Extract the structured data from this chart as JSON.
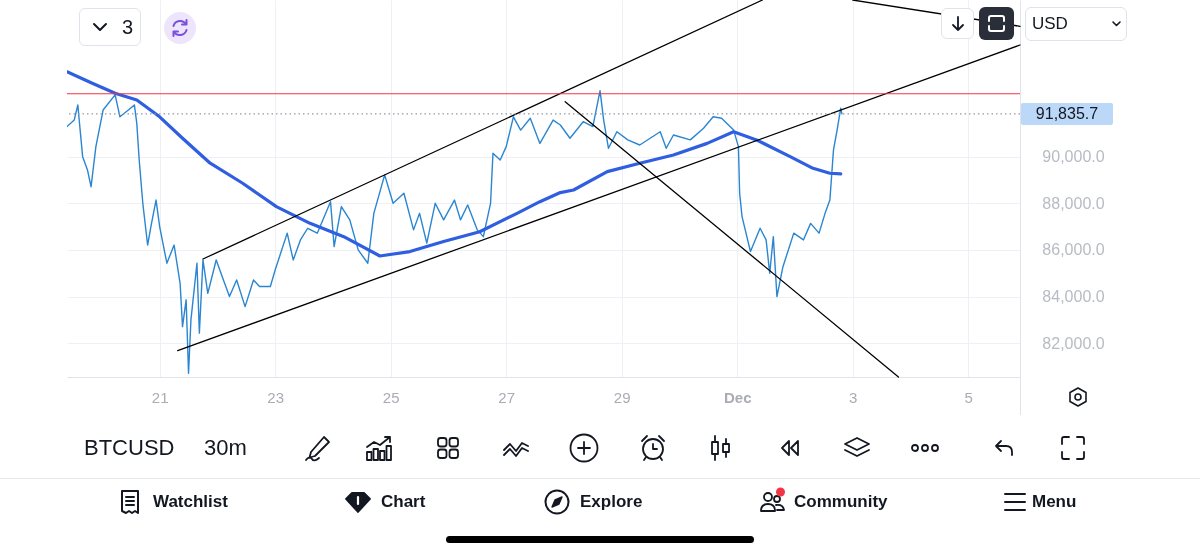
{
  "chart_data": {
    "type": "line",
    "annotations": [
      "3",
      "USD",
      "BTCUSD",
      "30m",
      "Watchlist",
      "Chart",
      "Explore",
      "Community",
      "Menu"
    ],
    "xlim": [
      "--11-19T09:30",
      "--12-05T21:30"
    ],
    "xticks": [
      {
        "value": "--11-21",
        "label": "21"
      },
      {
        "value": "--11-23",
        "label": "23"
      },
      {
        "value": "--11-25",
        "label": "25"
      },
      {
        "value": "--11-27",
        "label": "27"
      },
      {
        "value": "--11-29",
        "label": "29"
      },
      {
        "value": "--12-01",
        "label": "Dec"
      },
      {
        "value": "--12-03",
        "label": "3"
      },
      {
        "value": "--12-05",
        "label": "5"
      }
    ],
    "ylim": [
      80550,
      96720
    ],
    "yticks": [
      {
        "value": 82000,
        "label": "82,000.0"
      },
      {
        "value": 84000,
        "label": "84,000.0"
      },
      {
        "value": 86000,
        "label": "86,000.0"
      },
      {
        "value": 88000,
        "label": "88,000.0"
      },
      {
        "value": 90000,
        "label": "90,000.0"
      }
    ],
    "grid": true,
    "series": [
      {
        "color": "#2a86d1",
        "x": [
          "--11-19T09:30",
          "--11-19T12:30",
          "--11-19T14:00",
          "--11-19T14:30",
          "--11-19T16:00",
          "--11-19T18:00",
          "--11-19T19:30",
          "--11-19T21:30",
          "--11-20T00:30",
          "--11-20T05:30",
          "--11-20T07:30",
          "--11-20T11:00",
          "--11-20T13:30",
          "--11-20T14:30",
          "--11-20T15:30",
          "--11-20T17:00",
          "--11-20T19:00",
          "--11-20T20:30",
          "--11-20T22:30",
          "--11-21T00:00",
          "--11-21T03:00",
          "--11-21T06:00",
          "--11-21T08:30",
          "--11-21T09:30",
          "--11-21T11:00",
          "--11-21T12:00",
          "--11-21T13:00",
          "--11-21T15:30",
          "--11-21T16:30",
          "--11-21T18:00",
          "--11-21T20:00",
          "--11-21T23:30",
          "--11-22T02:30",
          "--11-22T05:00",
          "--11-22T08:00",
          "--11-22T11:30",
          "--11-22T15:00",
          "--11-22T17:30",
          "--11-22T22:00",
          "--11-23T00:00",
          "--11-23T05:00",
          "--11-23T07:30",
          "--11-23T10:30",
          "--11-23T13:30",
          "--11-23T17:30",
          "--11-23T23:00",
          "--11-24T00:30",
          "--11-24T03:30",
          "--11-24T07:00",
          "--11-24T10:30",
          "--11-24T14:30",
          "--11-24T17:00",
          "--11-24T21:30",
          "--11-25T01:00",
          "--11-25T05:30",
          "--11-25T09:30",
          "--11-25T12:00",
          "--11-25T15:00",
          "--11-25T18:30",
          "--11-25T22:00",
          "--11-26T02:30",
          "--11-26T05:00",
          "--11-26T08:00",
          "--11-26T12:00",
          "--11-26T14:30",
          "--11-26T17:30",
          "--11-26T18:30",
          "--11-26T21:30",
          "--11-27T00:00",
          "--11-27T03:00",
          "--11-27T06:00",
          "--11-27T10:00",
          "--11-27T14:00",
          "--11-27T19:30",
          "--11-27T22:30",
          "--11-28T02:30",
          "--11-28T08:00",
          "--11-28T12:00",
          "--11-28T15:00",
          "--11-28T16:30",
          "--11-28T18:30",
          "--11-28T22:00",
          "--11-29T02:30",
          "--11-29T07:30",
          "--11-29T16:00",
          "--11-29T18:30",
          "--11-29T21:30",
          "--11-30T04:30",
          "--11-30T10:00",
          "--11-30T14:00",
          "--11-30T17:30",
          "--11-30T22:30",
          "--12-01T00:30",
          "--12-01T01:00",
          "--12-01T02:00",
          "--12-01T04:00",
          "--12-01T05:30",
          "--12-01T09:30",
          "--12-01T12:00",
          "--12-01T13:30",
          "--12-01T15:00",
          "--12-01T16:30",
          "--12-01T19:00",
          "--12-01T23:30",
          "--12-02T03:30",
          "--12-02T06:30",
          "--12-02T10:00",
          "--12-02T12:30",
          "--12-02T14:30",
          "--12-02T16:00",
          "--12-02T17:30",
          "--12-02T19:00",
          "--12-02T19:30"
        ],
        "values": [
          91290,
          91570,
          92220,
          91650,
          90000,
          89430,
          88710,
          90430,
          92000,
          92650,
          91710,
          92000,
          92220,
          91430,
          89860,
          88000,
          86210,
          87070,
          88140,
          87000,
          85430,
          86210,
          84570,
          82710,
          83860,
          80710,
          83000,
          85430,
          82430,
          85570,
          84140,
          85570,
          84710,
          84000,
          84710,
          83570,
          84710,
          84430,
          84430,
          85140,
          86720,
          85570,
          86430,
          86930,
          86720,
          88070,
          86140,
          87860,
          87290,
          86000,
          85430,
          87570,
          89220,
          88000,
          88430,
          86860,
          87570,
          86290,
          88000,
          87290,
          88140,
          87290,
          87930,
          86860,
          86570,
          88000,
          90150,
          89860,
          90430,
          91710,
          91140,
          91650,
          90570,
          91570,
          91360,
          90790,
          91500,
          91290,
          92830,
          91570,
          90360,
          91070,
          90720,
          90500,
          91070,
          90360,
          90930,
          90720,
          91220,
          91710,
          91650,
          91140,
          90430,
          88430,
          87430,
          86570,
          85930,
          86930,
          86430,
          85000,
          86570,
          84000,
          85280,
          86720,
          86430,
          87140,
          86720,
          87570,
          88140,
          90290,
          91140,
          92080,
          91840
        ]
      },
      {
        "color": "#2f5fe0",
        "x": [
          "--11-19T09:30",
          "--11-19T20:00",
          "--11-20T05:30",
          "--11-20T14:30",
          "--11-21T00:00",
          "--11-21T09:30",
          "--11-21T21:00",
          "--11-22T10:30",
          "--11-23T00:30",
          "--11-23T14:30",
          "--11-24T04:30",
          "--11-24T19:30",
          "--11-25T08:00",
          "--11-25T22:00",
          "--11-26T13:00",
          "--11-27T04:30",
          "--11-27T14:00",
          "--11-27T22:30",
          "--11-28T04:00",
          "--11-28T18:00",
          "--11-29T07:30",
          "--11-29T21:30",
          "--11-30T11:30",
          "--11-30T22:30",
          "--12-01T08:00",
          "--12-01T22:00",
          "--12-02T07:30",
          "--12-02T14:30",
          "--12-02T19:00"
        ],
        "values": [
          93640,
          93150,
          92720,
          92430,
          91710,
          90790,
          89720,
          88860,
          87860,
          87140,
          86570,
          85740,
          85930,
          86360,
          86780,
          87570,
          88070,
          88460,
          88570,
          89360,
          89720,
          90070,
          90570,
          91070,
          90720,
          90000,
          89500,
          89290,
          89260
        ]
      },
      {
        "color": "#000000",
        "x": [
          "--11-21T18:00",
          "--12-01T10:30"
        ],
        "values": [
          85610,
          96720
        ]
      },
      {
        "color": "#000000",
        "x": [
          "--11-21T07:30",
          "--12-05T21:30"
        ],
        "values": [
          81680,
          94790
        ]
      },
      {
        "color": "#000000",
        "x": [
          "--12-03T00:00",
          "--12-05T21:30"
        ],
        "values": [
          96720,
          95590
        ]
      },
      {
        "color": "#000000",
        "x": [
          "--11-28T00:30",
          "--12-03T19:00"
        ],
        "values": [
          92360,
          80550
        ]
      }
    ],
    "ref_lines": [
      {
        "axis": "y",
        "value": 92700,
        "color": "#f23645"
      },
      {
        "axis": "y",
        "value": 91835.7,
        "label": "91,835.7",
        "color": "#9598a1",
        "line_style": "dotted"
      }
    ]
  }
}
